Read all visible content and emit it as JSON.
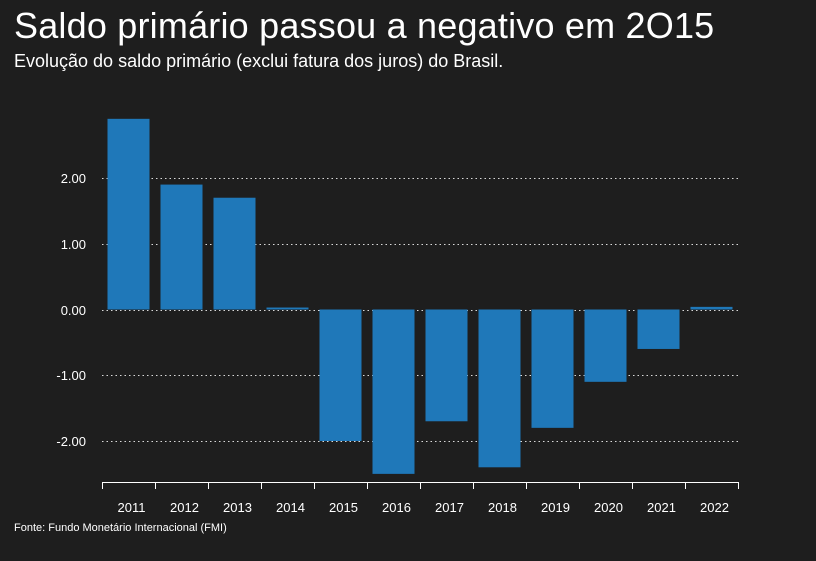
{
  "title": "Saldo primário passou a negativo em 2O15",
  "subtitle": "Evolução do saldo primário (exclui fatura dos juros) do Brasil.",
  "source": "Fonte: Fundo Monetário Internacional (FMI)",
  "colors": {
    "bar": "#1f78b9",
    "background": "#1e1e1e",
    "grid": "#d9d9d9",
    "text": "#ffffff"
  },
  "chart_data": {
    "type": "bar",
    "title": "Saldo primário passou a negativo em 2O15",
    "subtitle": "Evolução do saldo primário (exclui fatura dos juros) do Brasil.",
    "categories": [
      "2011",
      "2012",
      "2013",
      "2014",
      "2015",
      "2016",
      "2017",
      "2018",
      "2019",
      "2020",
      "2021",
      "2022"
    ],
    "values": [
      2.9,
      1.9,
      1.7,
      0.03,
      -2.0,
      -2.5,
      -1.7,
      -2.4,
      -1.8,
      -1.1,
      -0.6,
      0.04
    ],
    "y_ticks": [
      2.0,
      1.0,
      0.0,
      -1.0,
      -2.0
    ],
    "y_tick_labels": [
      "2.00",
      "1.00",
      "0.00",
      "-1.00",
      "-2.00"
    ],
    "ylim": [
      -2.62,
      3.0
    ],
    "grid": "horizontal dotted",
    "legend": "none",
    "xlabel": "",
    "ylabel": ""
  }
}
